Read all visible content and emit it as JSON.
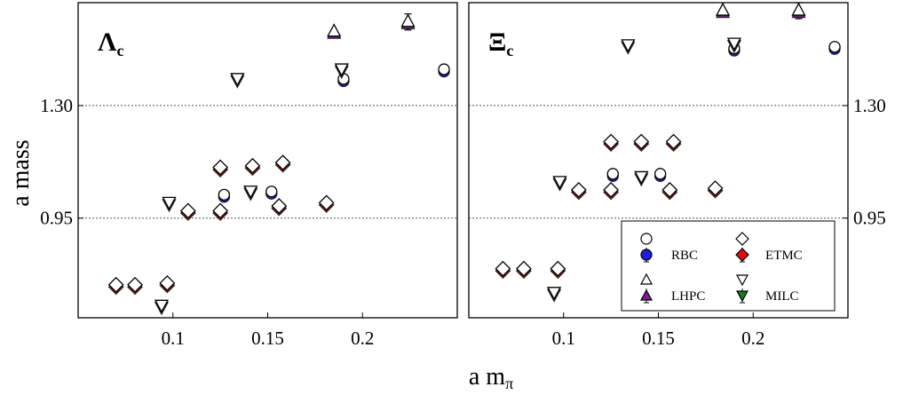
{
  "axes": {
    "xlabel": "a m",
    "xlabel_sub": "π",
    "ylabel": "a mass"
  },
  "chart_data": [
    {
      "type": "scatter",
      "panel_label": "Λ",
      "panel_label_sub": "c",
      "xlim": [
        0.05,
        0.25
      ],
      "ylim": [
        0.64,
        1.62
      ],
      "x_ticks": [
        0.1,
        0.15,
        0.2
      ],
      "x_tick_labels": [
        "0.1",
        "0.15",
        "0.2"
      ],
      "y_ticks": [
        0.95,
        1.3
      ],
      "y_tick_labels": [
        "0.95",
        "1.30"
      ],
      "gridlines_y": [
        0.95,
        1.3
      ],
      "series": [
        {
          "name": "RBC",
          "marker": "circle",
          "color": "#1f1fdd",
          "points": [
            [
              0.127,
              1.02
            ],
            [
              0.152,
              1.03
            ],
            [
              0.19,
              1.38
            ],
            [
              0.243,
              1.41
            ]
          ]
        },
        {
          "name": "LHPC",
          "marker": "triangle-up",
          "color": "#7a1f8f",
          "points": [
            [
              0.185,
              1.53
            ],
            [
              0.224,
              1.56
            ]
          ]
        },
        {
          "name": "ETMC",
          "marker": "diamond",
          "color": "#e01010",
          "points": [
            [
              0.07,
              0.74
            ],
            [
              0.08,
              0.74
            ],
            [
              0.097,
              0.745
            ],
            [
              0.108,
              0.97
            ],
            [
              0.125,
              0.97
            ],
            [
              0.125,
              1.105
            ],
            [
              0.142,
              1.11
            ],
            [
              0.156,
              0.985
            ],
            [
              0.158,
              1.12
            ],
            [
              0.181,
              0.995
            ]
          ]
        },
        {
          "name": "MILC",
          "marker": "triangle-down",
          "color": "#1e7a1e",
          "points": [
            [
              0.094,
              0.675
            ],
            [
              0.098,
              0.995
            ],
            [
              0.134,
              1.38
            ],
            [
              0.141,
              1.03
            ],
            [
              0.189,
              1.41
            ]
          ]
        }
      ]
    },
    {
      "type": "scatter",
      "panel_label": "Ξ",
      "panel_label_sub": "c",
      "xlim": [
        0.05,
        0.25
      ],
      "ylim": [
        0.64,
        1.62
      ],
      "x_ticks": [
        0.1,
        0.15,
        0.2
      ],
      "x_tick_labels": [
        "0.1",
        "0.15",
        "0.2"
      ],
      "y_ticks": [
        0.95,
        1.3
      ],
      "y_tick_labels": [
        "0.95",
        "1.30"
      ],
      "gridlines_y": [
        0.95,
        1.3
      ],
      "series": [
        {
          "name": "RBC",
          "marker": "circle",
          "color": "#1f1fdd",
          "points": [
            [
              0.126,
              1.085
            ],
            [
              0.151,
              1.085
            ],
            [
              0.19,
              1.475
            ],
            [
              0.243,
              1.48
            ]
          ]
        },
        {
          "name": "LHPC",
          "marker": "triangle-up",
          "color": "#7a1f8f",
          "points": [
            [
              0.184,
              1.595
            ],
            [
              0.224,
              1.595
            ]
          ]
        },
        {
          "name": "ETMC",
          "marker": "diamond",
          "color": "#e01010",
          "points": [
            [
              0.068,
              0.79
            ],
            [
              0.079,
              0.79
            ],
            [
              0.097,
              0.79
            ],
            [
              0.108,
              1.035
            ],
            [
              0.125,
              1.035
            ],
            [
              0.125,
              1.185
            ],
            [
              0.141,
              1.185
            ],
            [
              0.156,
              1.035
            ],
            [
              0.158,
              1.185
            ],
            [
              0.18,
              1.04
            ]
          ]
        },
        {
          "name": "MILC",
          "marker": "triangle-down",
          "color": "#1e7a1e",
          "points": [
            [
              0.095,
              0.715
            ],
            [
              0.098,
              1.06
            ],
            [
              0.134,
              1.485
            ],
            [
              0.141,
              1.075
            ],
            [
              0.19,
              1.49
            ]
          ]
        }
      ]
    }
  ],
  "legend": {
    "placement": "bottom-right of right panel",
    "entries": [
      {
        "label": "RBC",
        "marker": "circle",
        "color": "#1f1fdd"
      },
      {
        "label": "ETMC",
        "marker": "diamond",
        "color": "#e01010"
      },
      {
        "label": "LHPC",
        "marker": "triangle-up",
        "color": "#7a1f8f"
      },
      {
        "label": "MILC",
        "marker": "triangle-down",
        "color": "#1e7a1e"
      }
    ]
  }
}
